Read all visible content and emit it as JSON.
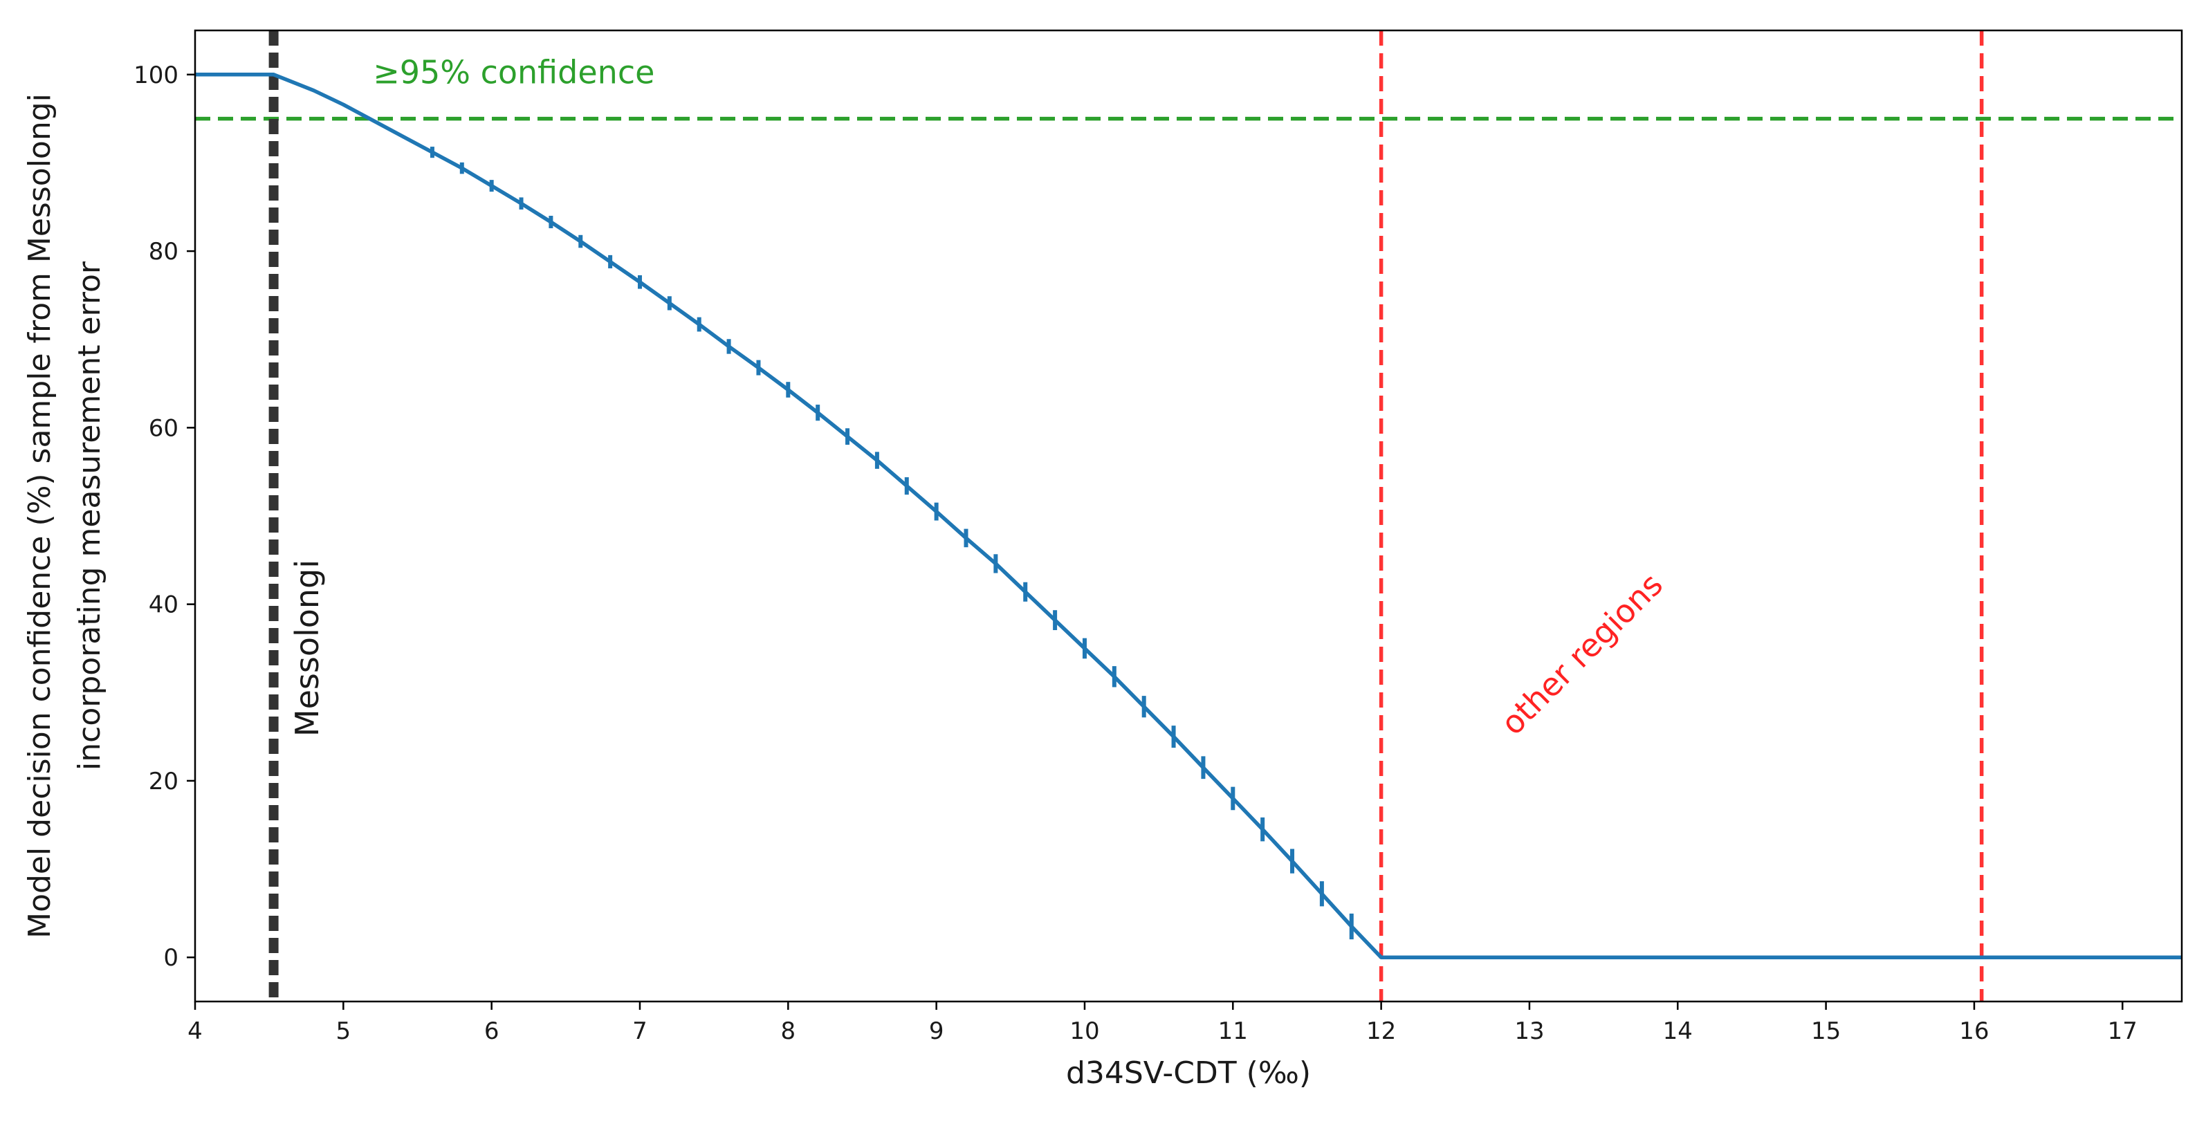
{
  "chart_data": {
    "type": "line",
    "xlabel": "d34SV-CDT (‰)",
    "ylabel_lines": [
      "Model decision confidence (%) sample from Messolongi",
      "incorporating measurement error"
    ],
    "xlim": [
      4.0,
      17.4
    ],
    "ylim": [
      -5,
      105
    ],
    "x_ticks": [
      4,
      5,
      6,
      7,
      8,
      9,
      10,
      11,
      12,
      13,
      14,
      15,
      16,
      17
    ],
    "y_ticks": [
      0,
      20,
      40,
      60,
      80,
      100
    ],
    "grid": false,
    "series": [
      {
        "color": "#1f77b4",
        "x": [
          4.0,
          4.53,
          4.8,
          5.0,
          5.2,
          5.4,
          5.6,
          5.8,
          6.0,
          6.2,
          6.4,
          6.6,
          6.8,
          7.0,
          7.2,
          7.4,
          7.6,
          7.8,
          8.0,
          8.2,
          8.4,
          8.6,
          8.8,
          9.0,
          9.2,
          9.4,
          9.6,
          9.8,
          10.0,
          10.2,
          10.4,
          10.6,
          10.8,
          11.0,
          11.2,
          11.4,
          11.6,
          11.8,
          12.0,
          17.4
        ],
        "y": [
          100,
          100,
          98.2,
          96.6,
          94.8,
          93.0,
          91.2,
          89.4,
          87.4,
          85.4,
          83.3,
          81.1,
          78.8,
          76.5,
          74.1,
          71.7,
          69.2,
          66.8,
          64.3,
          61.7,
          59.0,
          56.3,
          53.4,
          50.5,
          47.5,
          44.6,
          41.4,
          38.2,
          35.0,
          31.8,
          28.4,
          25.0,
          21.5,
          18.0,
          14.5,
          10.9,
          7.2,
          3.5,
          0,
          0
        ],
        "error_bars_x": [
          5.6,
          5.8,
          6.0,
          6.2,
          6.4,
          6.6,
          6.8,
          7.0,
          7.2,
          7.4,
          7.6,
          7.8,
          8.0,
          8.2,
          8.4,
          8.6,
          8.8,
          9.0,
          9.2,
          9.4,
          9.6,
          9.8,
          10.0,
          10.2,
          10.4,
          10.6,
          10.8,
          11.0,
          11.2,
          11.4,
          11.6,
          11.8
        ]
      }
    ],
    "reference_lines": [
      {
        "orientation": "horizontal",
        "value": 95,
        "color": "#2ca02c",
        "style": "dashed"
      },
      {
        "orientation": "vertical",
        "value": 4.53,
        "color": "#333333",
        "style": "dashed-thick"
      },
      {
        "orientation": "vertical",
        "value": 12.0,
        "color": "#ff3333",
        "style": "dashed"
      },
      {
        "orientation": "vertical",
        "value": 16.05,
        "color": "#ff3333",
        "style": "dashed"
      }
    ],
    "annotations": [
      {
        "text": "≥95% confidence",
        "color": "#2ca02c",
        "x": 5.2,
        "y": 99
      },
      {
        "text": "Messolongi",
        "color": "#1a1a1a",
        "x": 4.83,
        "y": 25,
        "rotation": -90
      },
      {
        "text": "other regions",
        "color": "#ff2222",
        "x": 12.9,
        "y": 25,
        "rotation": -45
      }
    ]
  }
}
